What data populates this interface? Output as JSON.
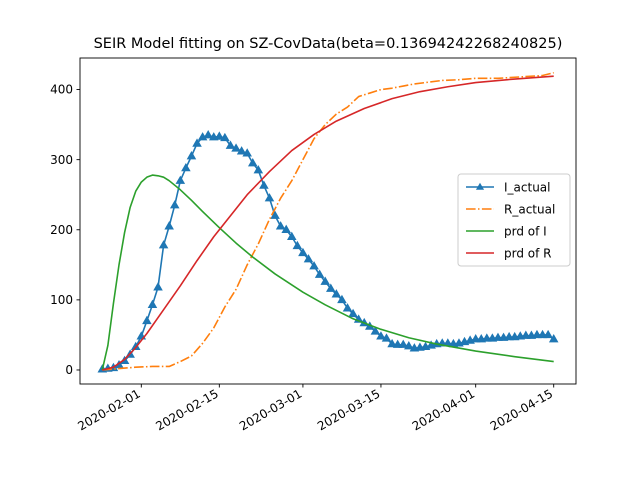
{
  "chart_data": {
    "type": "line",
    "title": "SEIR Model fitting on SZ-CovData(beta=0.13694242268240825)",
    "xlabel": "",
    "ylabel": "",
    "x_type": "date",
    "xlim": [
      "2020-01-21",
      "2020-04-19"
    ],
    "ylim": [
      -20,
      445
    ],
    "x_ticks": [
      "2020-02-01",
      "2020-02-15",
      "2020-03-01",
      "2020-03-15",
      "2020-04-01",
      "2020-04-15"
    ],
    "y_ticks": [
      0,
      100,
      200,
      300,
      400
    ],
    "grid": false,
    "legend": "center-right",
    "series": [
      {
        "name": "I_actual",
        "color": "#1f77b4",
        "style": "solid",
        "marker": "triangle",
        "x": [
          "2020-01-25",
          "2020-01-26",
          "2020-01-27",
          "2020-01-28",
          "2020-01-29",
          "2020-01-30",
          "2020-01-31",
          "2020-02-01",
          "2020-02-02",
          "2020-02-03",
          "2020-02-04",
          "2020-02-05",
          "2020-02-06",
          "2020-02-07",
          "2020-02-08",
          "2020-02-09",
          "2020-02-10",
          "2020-02-11",
          "2020-02-12",
          "2020-02-13",
          "2020-02-14",
          "2020-02-15",
          "2020-02-16",
          "2020-02-17",
          "2020-02-18",
          "2020-02-19",
          "2020-02-20",
          "2020-02-21",
          "2020-02-22",
          "2020-02-23",
          "2020-02-24",
          "2020-02-25",
          "2020-02-26",
          "2020-02-27",
          "2020-02-28",
          "2020-02-29",
          "2020-03-01",
          "2020-03-02",
          "2020-03-03",
          "2020-03-04",
          "2020-03-05",
          "2020-03-06",
          "2020-03-07",
          "2020-03-08",
          "2020-03-09",
          "2020-03-10",
          "2020-03-11",
          "2020-03-12",
          "2020-03-13",
          "2020-03-14",
          "2020-03-15",
          "2020-03-16",
          "2020-03-17",
          "2020-03-18",
          "2020-03-19",
          "2020-03-20",
          "2020-03-21",
          "2020-03-22",
          "2020-03-23",
          "2020-03-24",
          "2020-03-25",
          "2020-03-26",
          "2020-03-27",
          "2020-03-28",
          "2020-03-29",
          "2020-03-30",
          "2020-03-31",
          "2020-04-01",
          "2020-04-02",
          "2020-04-03",
          "2020-04-04",
          "2020-04-05",
          "2020-04-06",
          "2020-04-07",
          "2020-04-08",
          "2020-04-09",
          "2020-04-10",
          "2020-04-11",
          "2020-04-12",
          "2020-04-13",
          "2020-04-14",
          "2020-04-15"
        ],
        "y": [
          1,
          2,
          3,
          7,
          13,
          22,
          33,
          48,
          70,
          93,
          118,
          178,
          205,
          235,
          270,
          288,
          305,
          323,
          332,
          335,
          332,
          333,
          331,
          320,
          316,
          312,
          309,
          295,
          285,
          263,
          245,
          220,
          205,
          200,
          190,
          177,
          167,
          158,
          148,
          136,
          126,
          116,
          108,
          100,
          88,
          80,
          72,
          67,
          62,
          55,
          48,
          45,
          37,
          36,
          36,
          34,
          31,
          32,
          33,
          35,
          37,
          38,
          38,
          37,
          38,
          40,
          42,
          44,
          44,
          45,
          45,
          46,
          46,
          47,
          47,
          48,
          49,
          49,
          50,
          50,
          50,
          44
        ]
      },
      {
        "name": "R_actual",
        "color": "#ff7f0e",
        "style": "dashdot",
        "x": [
          "2020-01-25",
          "2020-01-28",
          "2020-01-31",
          "2020-02-03",
          "2020-02-06",
          "2020-02-08",
          "2020-02-10",
          "2020-02-12",
          "2020-02-14",
          "2020-02-16",
          "2020-02-18",
          "2020-02-20",
          "2020-02-22",
          "2020-02-24",
          "2020-02-26",
          "2020-02-28",
          "2020-03-01",
          "2020-03-03",
          "2020-03-05",
          "2020-03-07",
          "2020-03-09",
          "2020-03-11",
          "2020-03-13",
          "2020-03-15",
          "2020-03-17",
          "2020-03-19",
          "2020-03-21",
          "2020-03-23",
          "2020-03-26",
          "2020-03-29",
          "2020-04-01",
          "2020-04-05",
          "2020-04-09",
          "2020-04-13",
          "2020-04-15"
        ],
        "y": [
          0,
          2,
          4,
          5,
          5,
          12,
          20,
          38,
          60,
          90,
          115,
          150,
          180,
          215,
          245,
          270,
          300,
          330,
          350,
          365,
          375,
          390,
          395,
          400,
          402,
          405,
          408,
          410,
          413,
          414,
          416,
          416,
          418,
          420,
          424
        ]
      },
      {
        "name": "prd of I",
        "color": "#2ca02c",
        "style": "solid",
        "x": [
          "2020-01-25",
          "2020-01-26",
          "2020-01-27",
          "2020-01-28",
          "2020-01-29",
          "2020-01-30",
          "2020-01-31",
          "2020-02-01",
          "2020-02-02",
          "2020-02-03",
          "2020-02-04",
          "2020-02-05",
          "2020-02-06",
          "2020-02-08",
          "2020-02-10",
          "2020-02-12",
          "2020-02-15",
          "2020-02-18",
          "2020-02-21",
          "2020-02-25",
          "2020-03-01",
          "2020-03-05",
          "2020-03-10",
          "2020-03-15",
          "2020-03-20",
          "2020-03-25",
          "2020-04-01",
          "2020-04-08",
          "2020-04-15"
        ],
        "y": [
          0,
          35,
          95,
          150,
          196,
          232,
          255,
          268,
          275,
          278,
          277,
          275,
          270,
          257,
          242,
          226,
          203,
          181,
          161,
          137,
          111,
          93,
          73,
          58,
          46,
          37,
          27,
          19,
          12
        ]
      },
      {
        "name": "prd of R",
        "color": "#d62728",
        "style": "solid",
        "x": [
          "2020-01-25",
          "2020-01-27",
          "2020-01-29",
          "2020-01-31",
          "2020-02-02",
          "2020-02-05",
          "2020-02-08",
          "2020-02-11",
          "2020-02-14",
          "2020-02-17",
          "2020-02-20",
          "2020-02-24",
          "2020-02-28",
          "2020-03-03",
          "2020-03-07",
          "2020-03-12",
          "2020-03-17",
          "2020-03-22",
          "2020-03-27",
          "2020-04-01",
          "2020-04-08",
          "2020-04-15"
        ],
        "y": [
          0,
          4,
          15,
          32,
          52,
          86,
          120,
          156,
          190,
          220,
          250,
          283,
          313,
          336,
          355,
          373,
          387,
          397,
          404,
          410,
          415,
          419
        ]
      }
    ]
  }
}
